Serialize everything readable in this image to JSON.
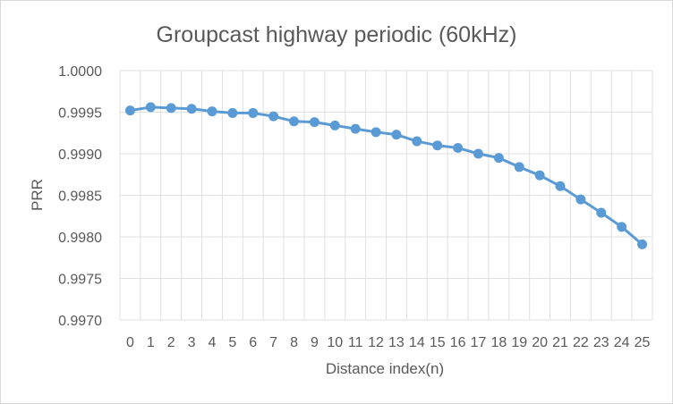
{
  "chart_data": {
    "type": "line",
    "title": "Groupcast highway periodic (60kHz)",
    "xlabel": "Distance index(n)",
    "ylabel": "PRR",
    "x": [
      0,
      1,
      2,
      3,
      4,
      5,
      6,
      7,
      8,
      9,
      10,
      11,
      12,
      13,
      14,
      15,
      16,
      17,
      18,
      19,
      20,
      21,
      22,
      23,
      24,
      25
    ],
    "series": [
      {
        "name": "",
        "values": [
          0.99952,
          0.99956,
          0.99955,
          0.99954,
          0.99951,
          0.99949,
          0.99949,
          0.99945,
          0.99939,
          0.99938,
          0.99934,
          0.9993,
          0.99926,
          0.99923,
          0.99915,
          0.9991,
          0.99907,
          0.999,
          0.99895,
          0.99884,
          0.99874,
          0.99861,
          0.99845,
          0.99829,
          0.99812,
          0.99791
        ],
        "color": "#5b9bd5"
      }
    ],
    "ylim": [
      0.997,
      1.0
    ],
    "y_ticks": [
      "0.9970",
      "0.9975",
      "0.9980",
      "0.9985",
      "0.9990",
      "0.9995",
      "1.0000"
    ],
    "x_ticks": [
      "0",
      "1",
      "2",
      "3",
      "4",
      "5",
      "6",
      "7",
      "8",
      "9",
      "10",
      "11",
      "12",
      "13",
      "14",
      "15",
      "16",
      "17",
      "18",
      "19",
      "20",
      "21",
      "22",
      "23",
      "24",
      "25"
    ],
    "grid": {
      "horizontal": true,
      "vertical": true
    },
    "gridline_color": "#e0e0e0",
    "legend": "none"
  }
}
